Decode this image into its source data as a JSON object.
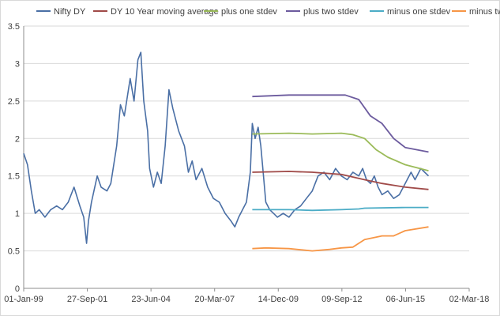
{
  "chart_data": {
    "type": "line",
    "title": "",
    "xlabel": "",
    "ylabel": "",
    "legend_position": "top",
    "grid": "horizontal",
    "x_ticks": [
      "01-Jan-99",
      "27-Sep-01",
      "23-Jun-04",
      "20-Mar-07",
      "14-Dec-09",
      "09-Sep-12",
      "06-Jun-15",
      "02-Mar-18"
    ],
    "y_ticks": [
      "0",
      "0.5",
      "1",
      "1.5",
      "2",
      "2.5",
      "3",
      "3.5"
    ],
    "xlim": [
      "1999-01-01",
      "2018-03-02"
    ],
    "ylim": [
      0,
      3.5
    ],
    "series": [
      {
        "name": "Nifty DY",
        "color": "#4a6fa5",
        "points": [
          [
            "1999-01-01",
            1.8
          ],
          [
            "1999-03-01",
            1.65
          ],
          [
            "1999-05-01",
            1.3
          ],
          [
            "1999-07-01",
            1.0
          ],
          [
            "1999-09-01",
            1.05
          ],
          [
            "1999-12-01",
            0.95
          ],
          [
            "2000-03-01",
            1.05
          ],
          [
            "2000-06-01",
            1.1
          ],
          [
            "2000-09-01",
            1.05
          ],
          [
            "2000-12-01",
            1.15
          ],
          [
            "2001-03-01",
            1.35
          ],
          [
            "2001-06-01",
            1.1
          ],
          [
            "2001-08-01",
            0.95
          ],
          [
            "2001-09-15",
            0.6
          ],
          [
            "2001-10-15",
            0.9
          ],
          [
            "2001-12-01",
            1.15
          ],
          [
            "2002-03-01",
            1.5
          ],
          [
            "2002-05-01",
            1.35
          ],
          [
            "2002-08-01",
            1.3
          ],
          [
            "2002-10-01",
            1.4
          ],
          [
            "2003-01-01",
            1.9
          ],
          [
            "2003-03-01",
            2.45
          ],
          [
            "2003-05-01",
            2.3
          ],
          [
            "2003-08-01",
            2.8
          ],
          [
            "2003-10-01",
            2.5
          ],
          [
            "2003-12-01",
            3.05
          ],
          [
            "2004-01-15",
            3.15
          ],
          [
            "2004-03-01",
            2.5
          ],
          [
            "2004-05-01",
            2.1
          ],
          [
            "2004-06-01",
            1.6
          ],
          [
            "2004-08-01",
            1.35
          ],
          [
            "2004-10-01",
            1.55
          ],
          [
            "2004-12-01",
            1.4
          ],
          [
            "2005-02-01",
            1.9
          ],
          [
            "2005-04-01",
            2.65
          ],
          [
            "2005-06-01",
            2.4
          ],
          [
            "2005-09-01",
            2.1
          ],
          [
            "2005-12-01",
            1.9
          ],
          [
            "2006-02-01",
            1.55
          ],
          [
            "2006-04-01",
            1.7
          ],
          [
            "2006-06-01",
            1.45
          ],
          [
            "2006-09-01",
            1.6
          ],
          [
            "2006-12-01",
            1.35
          ],
          [
            "2007-03-01",
            1.2
          ],
          [
            "2007-06-01",
            1.15
          ],
          [
            "2007-09-01",
            1.0
          ],
          [
            "2007-12-01",
            0.9
          ],
          [
            "2008-02-01",
            0.82
          ],
          [
            "2008-04-01",
            0.95
          ],
          [
            "2008-06-01",
            1.05
          ],
          [
            "2008-08-01",
            1.15
          ],
          [
            "2008-10-01",
            1.55
          ],
          [
            "2008-11-01",
            2.2
          ],
          [
            "2008-12-15",
            2.0
          ],
          [
            "2009-02-01",
            2.15
          ],
          [
            "2009-03-15",
            1.9
          ],
          [
            "2009-05-01",
            1.45
          ],
          [
            "2009-06-01",
            1.15
          ],
          [
            "2009-08-01",
            1.05
          ],
          [
            "2009-10-01",
            1.0
          ],
          [
            "2009-12-01",
            0.95
          ],
          [
            "2010-03-01",
            1.0
          ],
          [
            "2010-06-01",
            0.95
          ],
          [
            "2010-09-01",
            1.05
          ],
          [
            "2010-12-01",
            1.1
          ],
          [
            "2011-03-01",
            1.2
          ],
          [
            "2011-06-01",
            1.3
          ],
          [
            "2011-09-01",
            1.5
          ],
          [
            "2011-12-01",
            1.55
          ],
          [
            "2012-03-01",
            1.45
          ],
          [
            "2012-06-01",
            1.6
          ],
          [
            "2012-09-01",
            1.5
          ],
          [
            "2012-12-01",
            1.45
          ],
          [
            "2013-03-01",
            1.55
          ],
          [
            "2013-06-01",
            1.5
          ],
          [
            "2013-08-01",
            1.6
          ],
          [
            "2013-10-01",
            1.45
          ],
          [
            "2013-12-01",
            1.4
          ],
          [
            "2014-02-01",
            1.5
          ],
          [
            "2014-04-01",
            1.35
          ],
          [
            "2014-06-01",
            1.25
          ],
          [
            "2014-09-01",
            1.3
          ],
          [
            "2014-12-01",
            1.2
          ],
          [
            "2015-03-01",
            1.25
          ],
          [
            "2015-06-01",
            1.4
          ],
          [
            "2015-09-01",
            1.55
          ],
          [
            "2015-11-01",
            1.45
          ],
          [
            "2016-02-01",
            1.6
          ],
          [
            "2016-04-01",
            1.55
          ],
          [
            "2016-06-01",
            1.5
          ]
        ]
      },
      {
        "name": "DY 10 Year moving average",
        "color": "#a04a48",
        "points": [
          [
            "2008-11-01",
            1.55
          ],
          [
            "2010-06-01",
            1.56
          ],
          [
            "2011-06-01",
            1.55
          ],
          [
            "2012-09-01",
            1.52
          ],
          [
            "2013-09-01",
            1.45
          ],
          [
            "2014-06-01",
            1.4
          ],
          [
            "2015-06-01",
            1.35
          ],
          [
            "2016-06-01",
            1.32
          ]
        ]
      },
      {
        "name": "plus one stdev",
        "color": "#9bbb59",
        "points": [
          [
            "2008-11-01",
            2.06
          ],
          [
            "2010-06-01",
            2.07
          ],
          [
            "2011-06-01",
            2.06
          ],
          [
            "2012-09-01",
            2.07
          ],
          [
            "2013-03-01",
            2.05
          ],
          [
            "2013-09-01",
            2.0
          ],
          [
            "2014-03-01",
            1.85
          ],
          [
            "2014-09-01",
            1.75
          ],
          [
            "2015-06-01",
            1.65
          ],
          [
            "2016-06-01",
            1.57
          ]
        ]
      },
      {
        "name": "plus two stdev",
        "color": "#6c5b9e",
        "points": [
          [
            "2008-11-01",
            2.56
          ],
          [
            "2010-06-01",
            2.58
          ],
          [
            "2011-06-01",
            2.58
          ],
          [
            "2012-11-01",
            2.58
          ],
          [
            "2013-06-01",
            2.52
          ],
          [
            "2013-12-01",
            2.3
          ],
          [
            "2014-06-01",
            2.2
          ],
          [
            "2014-12-01",
            2.0
          ],
          [
            "2015-06-01",
            1.88
          ],
          [
            "2016-06-01",
            1.82
          ]
        ]
      },
      {
        "name": "minus one stdev",
        "color": "#4bacc6",
        "points": [
          [
            "2008-11-01",
            1.05
          ],
          [
            "2010-06-01",
            1.05
          ],
          [
            "2011-06-01",
            1.04
          ],
          [
            "2012-09-01",
            1.05
          ],
          [
            "2013-06-01",
            1.06
          ],
          [
            "2013-09-01",
            1.07
          ],
          [
            "2015-06-01",
            1.08
          ],
          [
            "2016-06-01",
            1.08
          ]
        ]
      },
      {
        "name": "minus two stdev",
        "color": "#f79646",
        "points": [
          [
            "2008-11-01",
            0.53
          ],
          [
            "2009-06-01",
            0.54
          ],
          [
            "2010-06-01",
            0.53
          ],
          [
            "2011-06-01",
            0.5
          ],
          [
            "2012-03-01",
            0.52
          ],
          [
            "2012-09-01",
            0.54
          ],
          [
            "2013-03-01",
            0.55
          ],
          [
            "2013-09-01",
            0.65
          ],
          [
            "2014-06-01",
            0.7
          ],
          [
            "2014-12-01",
            0.7
          ],
          [
            "2015-06-01",
            0.77
          ],
          [
            "2016-06-01",
            0.82
          ]
        ]
      }
    ]
  }
}
